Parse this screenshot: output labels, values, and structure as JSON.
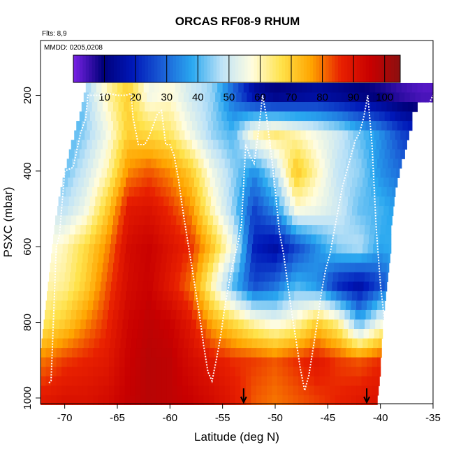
{
  "chart_data": {
    "type": "heatmap",
    "title": "ORCAS RF08-9 RHUM",
    "annotation_flights": "Flts: 8,9",
    "annotation_dates": "MMDD: 0205,0208",
    "xlabel": "Latitude (deg N)",
    "ylabel": "PSXC (mbar)",
    "xlim": [
      -72.3,
      -35
    ],
    "ylim": [
      1015,
      55
    ],
    "x_ticks": [
      -70,
      -65,
      -60,
      -55,
      -50,
      -45,
      -40,
      -35
    ],
    "x_tick_labels": [
      "-70",
      "-65",
      "-60",
      "-55",
      "-50",
      "-45",
      "-40",
      "-35"
    ],
    "y_ticks": [
      200,
      400,
      600,
      800,
      1000
    ],
    "y_tick_labels": [
      "200",
      "400",
      "600",
      "800",
      "1000"
    ],
    "colorbar": {
      "range": [
        0,
        105
      ],
      "ticks": [
        10,
        20,
        30,
        40,
        50,
        60,
        70,
        80,
        90,
        100
      ],
      "tick_labels": [
        "10",
        "20",
        "30",
        "40",
        "50",
        "60",
        "70",
        "80",
        "90",
        "100"
      ],
      "colors": [
        "#7a22e6",
        "#00007a",
        "#0018b8",
        "#1a5ed6",
        "#2aa8f0",
        "#bfe3f7",
        "#fffde0",
        "#ffe24a",
        "#ffa500",
        "#e82000",
        "#c80000",
        "#8b1010"
      ]
    },
    "pressure_levels": [
      180,
      205,
      230,
      255,
      280,
      305,
      330,
      355,
      380,
      405,
      430,
      455,
      480,
      505,
      530,
      555,
      580,
      605,
      630,
      655,
      680,
      705,
      730,
      755,
      780,
      805,
      830,
      855,
      880,
      905,
      930,
      955,
      980,
      1005
    ],
    "row_start_lat": [
      -68.0,
      -68.2,
      -68.4,
      -68.6,
      -68.9,
      -69.1,
      -69.4,
      -69.6,
      -69.8,
      -70.0,
      -70.2,
      -70.4,
      -70.6,
      -70.7,
      -70.9,
      -71.0,
      -71.1,
      -71.2,
      -71.3,
      -71.4,
      -71.5,
      -71.6,
      -71.7,
      -71.8,
      -71.9,
      -72.0,
      -72.1,
      -72.2,
      -72.3,
      -72.3,
      -72.3,
      -72.3,
      -72.3,
      -72.3
    ],
    "row_end_lat": [
      -35.0,
      -35.0,
      -36.5,
      -37.0,
      -37.0,
      -37.3,
      -37.5,
      -37.7,
      -38.0,
      -38.2,
      -38.4,
      -38.6,
      -38.7,
      -38.8,
      -38.9,
      -39.0,
      -39.0,
      -39.0,
      -39.1,
      -39.2,
      -39.3,
      -39.4,
      -39.5,
      -39.6,
      -39.7,
      -39.8,
      -39.8,
      -39.9,
      -39.9,
      -40.0,
      -40.0,
      -40.1,
      -40.2,
      -40.3
    ],
    "rh_profile_nodes": {
      "lat": [
        -72,
        -70,
        -68,
        -66,
        -64,
        -62,
        -60,
        -58,
        -56,
        -54,
        -52,
        -50,
        -48,
        -46,
        -44,
        -42,
        -40,
        -38,
        -36
      ],
      "pressure": [
        200,
        300,
        400,
        500,
        600,
        700,
        800,
        900,
        1000
      ],
      "rh": [
        [
          15,
          20,
          45,
          60,
          70,
          55,
          58,
          50,
          45,
          30,
          15,
          10,
          12,
          14,
          12,
          10,
          8,
          5,
          3
        ],
        [
          35,
          38,
          45,
          55,
          70,
          68,
          65,
          55,
          45,
          40,
          60,
          65,
          60,
          55,
          50,
          42,
          35,
          25,
          20
        ],
        [
          45,
          42,
          50,
          60,
          78,
          82,
          78,
          70,
          55,
          45,
          35,
          48,
          72,
          60,
          48,
          45,
          35,
          30,
          28
        ],
        [
          50,
          48,
          55,
          70,
          88,
          90,
          85,
          78,
          60,
          45,
          25,
          35,
          58,
          55,
          50,
          42,
          40,
          35,
          30
        ],
        [
          55,
          60,
          68,
          78,
          92,
          95,
          90,
          85,
          72,
          55,
          20,
          15,
          25,
          35,
          45,
          48,
          38,
          40,
          35
        ],
        [
          60,
          62,
          70,
          82,
          92,
          95,
          88,
          80,
          60,
          40,
          25,
          30,
          40,
          35,
          20,
          15,
          25,
          40,
          40
        ],
        [
          65,
          70,
          78,
          85,
          94,
          97,
          95,
          88,
          75,
          68,
          60,
          55,
          60,
          70,
          62,
          40,
          55,
          50,
          45
        ],
        [
          80,
          84,
          86,
          88,
          95,
          98,
          97,
          92,
          88,
          85,
          84,
          82,
          85,
          88,
          84,
          82,
          85,
          88,
          85
        ],
        [
          88,
          90,
          90,
          92,
          96,
          98,
          97,
          95,
          92,
          88,
          82,
          80,
          82,
          84,
          86,
          88,
          90,
          90,
          88
        ]
      ]
    },
    "flight_track": {
      "lat": [
        -71.5,
        -71.3,
        -70.8,
        -70.5,
        -70.0,
        -69.2,
        -68.5,
        -68.0,
        -67.8,
        -67.6,
        -67.3,
        -66.5,
        -65.8,
        -65.0,
        -64.2,
        -63.7,
        -63.5,
        -63.0,
        -62.4,
        -62.0,
        -61.6,
        -61.2,
        -60.8,
        -60.4,
        -60.0,
        -59.6,
        -59.2,
        -58.8,
        -58.4,
        -58.0,
        -57.6,
        -57.2,
        -56.8,
        -56.4,
        -56.0,
        -55.6,
        -55.2,
        -54.8,
        -54.4,
        -54.0,
        -53.6,
        -53.2,
        -52.8,
        -52.4,
        -52.0,
        -51.6,
        -51.2,
        -50.8,
        -50.4,
        -50.0,
        -49.6,
        -49.2,
        -48.8,
        -48.4,
        -48.0,
        -47.6,
        -47.2,
        -46.8,
        -46.4,
        -46.0,
        -45.6,
        -45.2,
        -44.8,
        -44.4,
        -44.0,
        -43.6,
        -43.2,
        -42.8,
        -42.4,
        -42.0,
        -41.6,
        -41.2,
        -40.8,
        -40.4,
        -40.0,
        -39.6,
        -39.2,
        -38.8,
        -38.4,
        -38.0,
        -37.6,
        -37.2,
        -36.8,
        -36.4,
        -36.0,
        -35.6,
        -35.2,
        -35.0
      ],
      "pressure": [
        960,
        955,
        600,
        570,
        400,
        390,
        300,
        260,
        200,
        200,
        200,
        200,
        195,
        200,
        200,
        195,
        260,
        330,
        330,
        310,
        280,
        250,
        240,
        330,
        330,
        360,
        420,
        500,
        570,
        640,
        710,
        780,
        860,
        930,
        955,
        900,
        840,
        760,
        700,
        640,
        600,
        540,
        330,
        360,
        380,
        300,
        200,
        260,
        350,
        450,
        560,
        620,
        700,
        780,
        850,
        925,
        980,
        940,
        870,
        800,
        720,
        660,
        620,
        560,
        500,
        440,
        400,
        360,
        320,
        300,
        260,
        200,
        330,
        550,
        700,
        800,
        870,
        920,
        920,
        850,
        760,
        660,
        540,
        420,
        300,
        250,
        210,
        200
      ]
    },
    "markers_lat": [
      -53.0,
      -41.3
    ]
  }
}
